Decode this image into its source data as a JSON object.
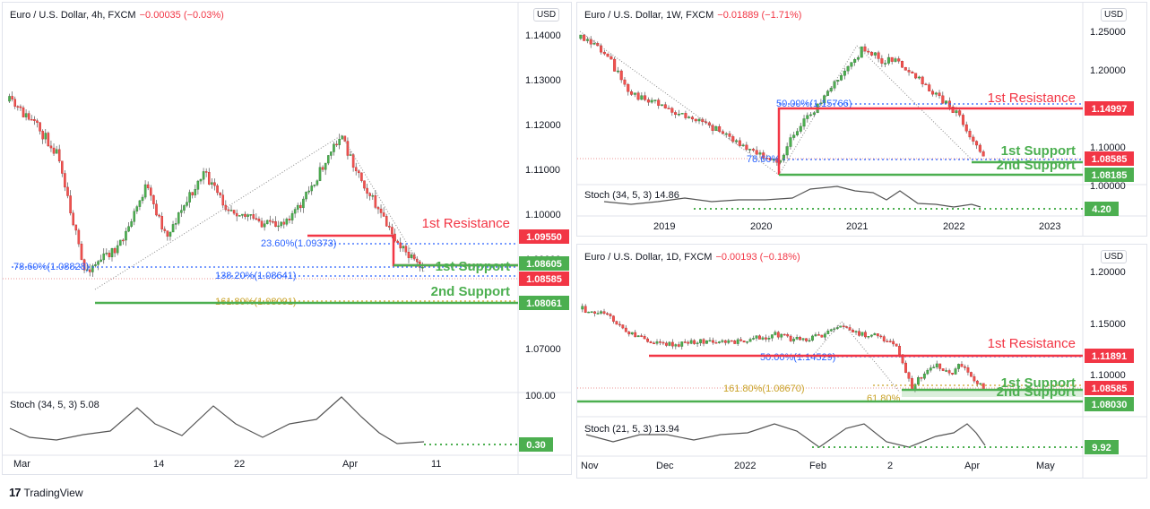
{
  "brand": {
    "logo_glyph": "17",
    "name": "TradingView"
  },
  "chart_data": [
    {
      "id": "p1",
      "type": "candlestick",
      "header": {
        "symbol": "Euro / U.S. Dollar, 4h, FXCM",
        "change": "−0.00035 (−0.03%)"
      },
      "currency": "USD",
      "y_ticks": [
        "1.14000",
        "1.13000",
        "1.12000",
        "1.11000",
        "1.10000",
        "1.09000",
        "1.08000",
        "1.07000"
      ],
      "x_ticks": [
        "Mar",
        "14",
        "22",
        "Apr",
        "11"
      ],
      "levels": [
        {
          "label": "1st Resistance",
          "price_tag": "1.09550",
          "color": "#f23645"
        },
        {
          "label": "1st Support",
          "price_tag": "1.08605",
          "color": "#4caf50"
        },
        {
          "label": "2nd Support",
          "price_tag": "1.08061",
          "color": "#4caf50"
        }
      ],
      "current_tag": "1.08585",
      "fib_labels": [
        "23.60%(1.09373)",
        "78.60%(1.08828)",
        "138.20%(1.08641)",
        "161.80%(1.08091)"
      ],
      "stoch": {
        "label": "Stoch (34, 5, 3)",
        "value": "5.08",
        "top_tick": "100.00",
        "tag": "0.30"
      }
    },
    {
      "id": "p2",
      "type": "candlestick",
      "header": {
        "symbol": "Euro / U.S. Dollar, 1W, FXCM",
        "change": "−0.01889 (−1.71%)"
      },
      "currency": "USD",
      "y_ticks": [
        "1.25000",
        "1.20000",
        "1.15000",
        "1.10000",
        "1.05000",
        "1.00000"
      ],
      "x_ticks": [
        "2019",
        "2020",
        "2021",
        "2022",
        "2023"
      ],
      "levels": [
        {
          "label": "1st Resistance",
          "price_tag": "1.14997",
          "color": "#f23645"
        },
        {
          "label": "1st Support",
          "price_tag": "1.08585",
          "color": "#4caf50"
        },
        {
          "label": "2nd Support",
          "price_tag": "1.08185",
          "color": "#4caf50"
        }
      ],
      "current_tag": "1.08585",
      "fib_labels": [
        "50.00%(1.15766)",
        "78.60%"
      ],
      "stoch": {
        "label": "Stoch (34, 5, 3)",
        "value": "14.86",
        "top_tick": "",
        "tag": "4.20"
      }
    },
    {
      "id": "p3",
      "type": "candlestick",
      "header": {
        "symbol": "Euro / U.S. Dollar, 1D, FXCM",
        "change": "−0.00193 (−0.18%)"
      },
      "currency": "USD",
      "y_ticks": [
        "1.20000",
        "1.15000",
        "1.10000"
      ],
      "x_ticks": [
        "Nov",
        "Dec",
        "2022",
        "Feb",
        "2",
        "Apr",
        "May"
      ],
      "levels": [
        {
          "label": "1st Resistance",
          "price_tag": "1.11891",
          "color": "#f23645"
        },
        {
          "label": "1st Support",
          "price_tag": "1.08585",
          "color": "#4caf50"
        },
        {
          "label": "2nd Support",
          "price_tag": "1.08030",
          "color": "#4caf50"
        }
      ],
      "current_tag": "1.08585",
      "fib_labels": [
        "50.00%(1.14529)",
        "161.80%(1.08670)",
        "61.80%"
      ],
      "stoch": {
        "label": "Stoch (21, 5, 3)",
        "value": "13.94",
        "top_tick": "",
        "tag": "9.92"
      }
    }
  ]
}
